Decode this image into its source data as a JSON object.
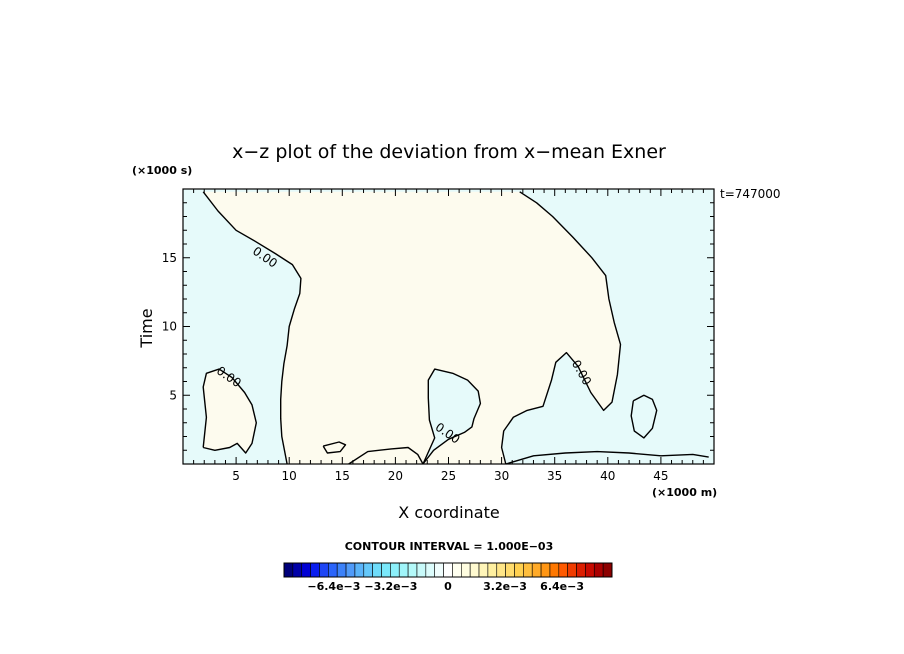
{
  "chart_data": {
    "type": "contour",
    "title": "x−z plot of the deviation from x−mean Exner",
    "xlabel": "X coordinate",
    "ylabel": "Time",
    "x_unit": "(×1000 m)",
    "y_unit": "(×1000 s)",
    "time_stamp": "t=747000",
    "xlim": [
      0,
      50
    ],
    "ylim": [
      0,
      20
    ],
    "x_ticks": [
      5,
      10,
      15,
      20,
      25,
      30,
      35,
      40,
      45
    ],
    "x_tick_labels": [
      "5",
      "10",
      "15",
      "20",
      "25",
      "30",
      "35",
      "40",
      "45"
    ],
    "y_ticks": [
      5,
      10,
      15
    ],
    "y_tick_labels": [
      "5",
      "10",
      "15"
    ],
    "contour_level": 0.0,
    "contour_label": "0.00",
    "contour_interval_text": "CONTOUR INTERVAL = 1.000E−03",
    "colors": {
      "positive_fill": "#fdfbee",
      "negative_fill": "#e6fafa"
    },
    "contours": [
      {
        "name": "left-boundary",
        "points": [
          [
            1.9,
            19.8
          ],
          [
            3.3,
            18.4
          ],
          [
            5,
            17
          ],
          [
            6.8,
            16.2
          ],
          [
            8.7,
            15.3
          ],
          [
            10.3,
            14.5
          ],
          [
            11.1,
            13.5
          ],
          [
            11,
            12.4
          ],
          [
            10.5,
            11.3
          ],
          [
            10,
            10
          ],
          [
            9.8,
            8.6
          ],
          [
            9.5,
            7.3
          ],
          [
            9.3,
            6
          ],
          [
            9.2,
            4.7
          ],
          [
            9.2,
            3.3
          ],
          [
            9.3,
            2
          ],
          [
            9.8,
            0
          ]
        ]
      },
      {
        "name": "right-boundary",
        "points": [
          [
            31.7,
            19.8
          ],
          [
            33.3,
            19
          ],
          [
            34.8,
            18
          ],
          [
            36.7,
            16.5
          ],
          [
            38.5,
            15
          ],
          [
            39.8,
            13.7
          ],
          [
            40.1,
            12
          ],
          [
            40.6,
            10.3
          ],
          [
            41.2,
            8.7
          ],
          [
            40.9,
            6.5
          ],
          [
            40.4,
            4.5
          ],
          [
            39.6,
            3.9
          ],
          [
            38.4,
            5.2
          ],
          [
            37.2,
            7.1
          ],
          [
            36.1,
            8.1
          ],
          [
            35.1,
            7.4
          ],
          [
            34.7,
            6.1
          ],
          [
            33.9,
            4.2
          ],
          [
            32.4,
            3.9
          ],
          [
            31.1,
            3.4
          ],
          [
            30.2,
            2.4
          ],
          [
            30,
            1.2
          ],
          [
            30.4,
            0
          ]
        ]
      },
      {
        "name": "middle-lobe",
        "points": [
          [
            22.6,
            0
          ],
          [
            23.6,
            1
          ],
          [
            25,
            1.8
          ],
          [
            26.5,
            2.3
          ],
          [
            27.2,
            2.7
          ],
          [
            27.4,
            3.3
          ],
          [
            28,
            4.4
          ],
          [
            27.8,
            5.3
          ],
          [
            26.8,
            6.1
          ],
          [
            25.4,
            6.6
          ],
          [
            23.7,
            6.9
          ],
          [
            23.1,
            6.1
          ],
          [
            23.1,
            4.8
          ],
          [
            23.2,
            3.2
          ],
          [
            23.7,
            1.9
          ],
          [
            22.6,
            0
          ]
        ]
      },
      {
        "name": "lower-left-lobe",
        "points": [
          [
            1.9,
            1.2
          ],
          [
            2.2,
            3.4
          ],
          [
            1.9,
            5.6
          ],
          [
            2.2,
            6.6
          ],
          [
            3.4,
            6.9
          ],
          [
            4.6,
            6.3
          ],
          [
            5.8,
            5.2
          ],
          [
            6.5,
            4.3
          ],
          [
            6.9,
            3
          ],
          [
            6.5,
            1.5
          ],
          [
            5.9,
            0.8
          ],
          [
            5.1,
            1.5
          ],
          [
            4.4,
            1.2
          ],
          [
            3,
            1
          ],
          [
            1.9,
            1.2
          ]
        ]
      },
      {
        "name": "right-island",
        "points": [
          [
            42.4,
            4.6
          ],
          [
            43.4,
            5
          ],
          [
            44.2,
            4.7
          ],
          [
            44.6,
            3.9
          ],
          [
            44.2,
            2.6
          ],
          [
            43.4,
            1.9
          ],
          [
            42.5,
            2.4
          ],
          [
            42.2,
            3.5
          ],
          [
            42.4,
            4.6
          ]
        ]
      },
      {
        "name": "bottom-edge-segment",
        "points": [
          [
            15.6,
            0
          ],
          [
            17.4,
            0.9
          ],
          [
            19.6,
            1.1
          ],
          [
            21.2,
            1.2
          ],
          [
            22.1,
            0.7
          ],
          [
            22.6,
            0
          ]
        ]
      },
      {
        "name": "bottom-right-segment",
        "points": [
          [
            30.4,
            0
          ],
          [
            33,
            0.6
          ],
          [
            36,
            0.8
          ],
          [
            39,
            0.9
          ],
          [
            42,
            0.8
          ],
          [
            45,
            0.6
          ],
          [
            48,
            0.7
          ],
          [
            49.5,
            0.5
          ]
        ]
      },
      {
        "name": "bottom-small-blob",
        "points": [
          [
            13.2,
            1.3
          ],
          [
            14.7,
            1.6
          ],
          [
            15.3,
            1.4
          ],
          [
            14.8,
            0.9
          ],
          [
            13.6,
            0.8
          ],
          [
            13.2,
            1.3
          ]
        ]
      }
    ],
    "contour_text_labels": [
      {
        "text": "0.00",
        "x": 7.5,
        "y": 14.8,
        "angle": 35
      },
      {
        "text": "0.00",
        "x": 4.1,
        "y": 6.1,
        "angle": 35
      },
      {
        "text": "0.00",
        "x": 24.7,
        "y": 2,
        "angle": 35
      },
      {
        "text": "0.00",
        "x": 37.2,
        "y": 6.5,
        "angle": 60
      }
    ],
    "colorbar": {
      "colors": [
        "#00007a",
        "#0000a8",
        "#0000d4",
        "#0a1ef0",
        "#1e46f5",
        "#2a64fa",
        "#3c82fa",
        "#509bfa",
        "#5ab4fa",
        "#64c8fa",
        "#6edcfa",
        "#7ae8fa",
        "#8cf0fa",
        "#a0f5fa",
        "#b4fafa",
        "#c8fafa",
        "#dcfcfc",
        "#f0fdfd",
        "#ffffff",
        "#fffff0",
        "#fffde0",
        "#fffad0",
        "#fff5b8",
        "#fff0a0",
        "#ffe688",
        "#ffdc6e",
        "#ffd050",
        "#ffbe3c",
        "#ffaa28",
        "#ff9614",
        "#ff7800",
        "#ff5a00",
        "#f03c00",
        "#dc1e00",
        "#c80a00",
        "#aa0000",
        "#8c0000"
      ],
      "tick_labels": [
        "−6.4e−3",
        "−3.2e−3",
        "0",
        "3.2e−3",
        "6.4e−3"
      ],
      "tick_values": [
        -0.0064,
        -0.0032,
        0,
        0.0032,
        0.0064
      ],
      "range": [
        -0.0092,
        0.0092
      ]
    }
  }
}
